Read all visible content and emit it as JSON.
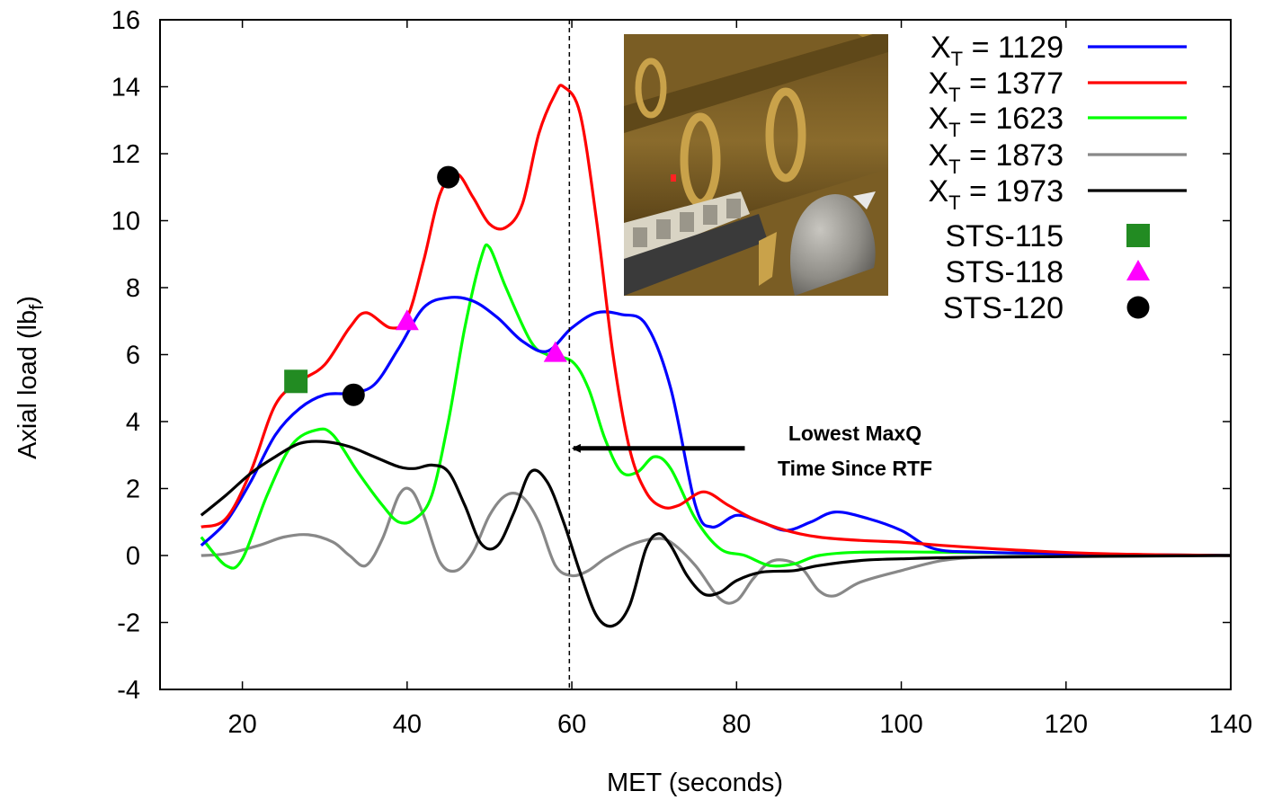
{
  "chart_data": {
    "type": "line",
    "title": "",
    "xlabel": "MET (seconds)",
    "ylabel": "Axial load (lb",
    "ylabel_sub": "f",
    "ylabel_close": ")",
    "xlim": [
      10,
      140
    ],
    "ylim": [
      -4,
      16
    ],
    "xticks": [
      20,
      40,
      60,
      80,
      100,
      120,
      140
    ],
    "yticks": [
      -4,
      -2,
      0,
      2,
      4,
      6,
      8,
      10,
      12,
      14,
      16
    ],
    "grid": false,
    "legend_placement": "top-right",
    "series": [
      {
        "name": "X",
        "name_sub": "T",
        "name_rest": " = 1129",
        "color": "#0000ff",
        "points": [
          [
            15,
            0.3
          ],
          [
            18,
            1.0
          ],
          [
            21,
            2.2
          ],
          [
            24,
            3.6
          ],
          [
            27,
            4.4
          ],
          [
            30,
            4.8
          ],
          [
            33,
            4.85
          ],
          [
            36,
            5.1
          ],
          [
            39,
            6.2
          ],
          [
            42,
            7.4
          ],
          [
            45,
            7.7
          ],
          [
            48,
            7.6
          ],
          [
            51,
            7.1
          ],
          [
            54,
            6.4
          ],
          [
            57,
            6.1
          ],
          [
            60,
            6.8
          ],
          [
            63,
            7.25
          ],
          [
            66,
            7.2
          ],
          [
            69,
            6.9
          ],
          [
            72,
            5.0
          ],
          [
            75,
            1.5
          ],
          [
            77,
            0.85
          ],
          [
            80,
            1.2
          ],
          [
            83,
            1.0
          ],
          [
            86,
            0.75
          ],
          [
            89,
            1.0
          ],
          [
            92,
            1.3
          ],
          [
            96,
            1.1
          ],
          [
            100,
            0.75
          ],
          [
            104,
            0.2
          ],
          [
            110,
            0.1
          ],
          [
            120,
            0.05
          ],
          [
            140,
            0.0
          ]
        ]
      },
      {
        "name": "X",
        "name_sub": "T",
        "name_rest": " = 1377",
        "color": "#ff0000",
        "points": [
          [
            15,
            0.85
          ],
          [
            18,
            1.1
          ],
          [
            21,
            2.5
          ],
          [
            24,
            4.5
          ],
          [
            27,
            5.2
          ],
          [
            30,
            5.7
          ],
          [
            33,
            6.8
          ],
          [
            35,
            7.25
          ],
          [
            38,
            6.8
          ],
          [
            40,
            7.1
          ],
          [
            42,
            8.8
          ],
          [
            44,
            10.8
          ],
          [
            46,
            11.4
          ],
          [
            48,
            10.7
          ],
          [
            50,
            9.9
          ],
          [
            52,
            9.8
          ],
          [
            54,
            10.5
          ],
          [
            56,
            12.6
          ],
          [
            58,
            13.8
          ],
          [
            59,
            14.0
          ],
          [
            61,
            13.2
          ],
          [
            63,
            10.0
          ],
          [
            65,
            6.0
          ],
          [
            67,
            3.2
          ],
          [
            69,
            1.9
          ],
          [
            71,
            1.45
          ],
          [
            73,
            1.5
          ],
          [
            76,
            1.9
          ],
          [
            79,
            1.5
          ],
          [
            82,
            1.1
          ],
          [
            86,
            0.75
          ],
          [
            90,
            0.55
          ],
          [
            95,
            0.45
          ],
          [
            100,
            0.4
          ],
          [
            105,
            0.3
          ],
          [
            115,
            0.15
          ],
          [
            125,
            0.05
          ],
          [
            140,
            0.0
          ]
        ]
      },
      {
        "name": "X",
        "name_sub": "T",
        "name_rest": " = 1623",
        "color": "#00ff00",
        "points": [
          [
            15,
            0.55
          ],
          [
            18,
            -0.3
          ],
          [
            20,
            -0.1
          ],
          [
            23,
            1.8
          ],
          [
            26,
            3.3
          ],
          [
            29,
            3.75
          ],
          [
            31,
            3.6
          ],
          [
            34,
            2.5
          ],
          [
            37,
            1.5
          ],
          [
            39,
            1.0
          ],
          [
            41,
            1.1
          ],
          [
            43,
            1.8
          ],
          [
            45,
            4.0
          ],
          [
            47,
            6.8
          ],
          [
            49,
            8.9
          ],
          [
            50,
            9.2
          ],
          [
            52,
            8.0
          ],
          [
            55,
            6.4
          ],
          [
            57,
            6.0
          ],
          [
            60,
            5.8
          ],
          [
            62,
            5.0
          ],
          [
            64,
            3.5
          ],
          [
            66,
            2.5
          ],
          [
            68,
            2.5
          ],
          [
            70,
            2.95
          ],
          [
            72,
            2.6
          ],
          [
            75,
            1.1
          ],
          [
            78,
            0.2
          ],
          [
            81,
            0.0
          ],
          [
            84,
            -0.3
          ],
          [
            87,
            -0.25
          ],
          [
            90,
            0.0
          ],
          [
            95,
            0.1
          ],
          [
            105,
            0.1
          ],
          [
            120,
            0.05
          ],
          [
            140,
            0.0
          ]
        ]
      },
      {
        "name": "X",
        "name_sub": "T",
        "name_rest": " = 1873",
        "color": "#888888",
        "points": [
          [
            15,
            0.0
          ],
          [
            18,
            0.05
          ],
          [
            22,
            0.3
          ],
          [
            25,
            0.55
          ],
          [
            28,
            0.62
          ],
          [
            31,
            0.4
          ],
          [
            33,
            0.0
          ],
          [
            35,
            -0.3
          ],
          [
            37,
            0.5
          ],
          [
            39,
            1.8
          ],
          [
            40.5,
            1.95
          ],
          [
            42,
            1.2
          ],
          [
            44,
            -0.2
          ],
          [
            46,
            -0.45
          ],
          [
            48,
            0.1
          ],
          [
            50,
            1.2
          ],
          [
            52,
            1.8
          ],
          [
            54,
            1.75
          ],
          [
            56,
            1.0
          ],
          [
            58,
            -0.3
          ],
          [
            60,
            -0.6
          ],
          [
            62,
            -0.45
          ],
          [
            64,
            -0.1
          ],
          [
            67,
            0.3
          ],
          [
            70,
            0.5
          ],
          [
            72,
            0.4
          ],
          [
            75,
            -0.3
          ],
          [
            78,
            -1.3
          ],
          [
            80,
            -1.35
          ],
          [
            82,
            -0.7
          ],
          [
            84,
            -0.2
          ],
          [
            86,
            -0.15
          ],
          [
            88,
            -0.4
          ],
          [
            90,
            -1.05
          ],
          [
            92,
            -1.2
          ],
          [
            95,
            -0.8
          ],
          [
            100,
            -0.45
          ],
          [
            105,
            -0.15
          ],
          [
            110,
            -0.05
          ],
          [
            120,
            0.0
          ],
          [
            140,
            0.0
          ]
        ]
      },
      {
        "name": "X",
        "name_sub": "T",
        "name_rest": " = 1973",
        "color": "#000000",
        "points": [
          [
            15,
            1.2
          ],
          [
            18,
            1.8
          ],
          [
            21,
            2.45
          ],
          [
            24,
            2.95
          ],
          [
            27,
            3.35
          ],
          [
            30,
            3.4
          ],
          [
            33,
            3.25
          ],
          [
            36,
            2.95
          ],
          [
            39,
            2.65
          ],
          [
            41,
            2.6
          ],
          [
            43,
            2.7
          ],
          [
            45,
            2.5
          ],
          [
            47,
            1.5
          ],
          [
            49,
            0.35
          ],
          [
            51,
            0.3
          ],
          [
            53,
            1.3
          ],
          [
            55,
            2.5
          ],
          [
            57,
            2.2
          ],
          [
            59,
            1.0
          ],
          [
            61,
            -0.5
          ],
          [
            63,
            -1.8
          ],
          [
            65,
            -2.1
          ],
          [
            67,
            -1.5
          ],
          [
            69,
            0.2
          ],
          [
            70.5,
            0.65
          ],
          [
            72,
            0.3
          ],
          [
            74,
            -0.6
          ],
          [
            76,
            -1.15
          ],
          [
            78,
            -1.1
          ],
          [
            80,
            -0.75
          ],
          [
            83,
            -0.5
          ],
          [
            87,
            -0.45
          ],
          [
            90,
            -0.3
          ],
          [
            95,
            -0.15
          ],
          [
            100,
            -0.1
          ],
          [
            110,
            -0.05
          ],
          [
            140,
            0.0
          ]
        ]
      }
    ],
    "markers": [
      {
        "name": "STS-115",
        "shape": "square",
        "color": "#228b22",
        "points": [
          [
            26.5,
            5.2
          ]
        ]
      },
      {
        "name": "STS-118",
        "shape": "triangle",
        "color": "#ff00ff",
        "points": [
          [
            40,
            7.0
          ],
          [
            58,
            6.05
          ]
        ]
      },
      {
        "name": "STS-120",
        "shape": "circle",
        "color": "#000000",
        "points": [
          [
            33.5,
            4.8
          ],
          [
            45,
            11.3
          ]
        ]
      }
    ],
    "vline": {
      "x": 59.7,
      "style": "dashed",
      "color": "#000000"
    },
    "annotation": {
      "lines": [
        "Lowest MaxQ",
        "Time Since RTF"
      ],
      "arrow_from": [
        81,
        3.2
      ],
      "arrow_to": [
        60.2,
        3.2
      ]
    }
  },
  "inset_image": {
    "description_icon": "shuttle-tank-render-icon"
  }
}
